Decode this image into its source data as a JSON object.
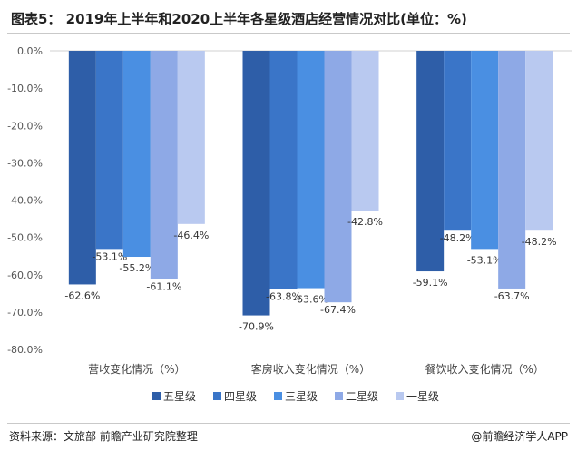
{
  "title": "图表5： 2019年上半年和2020上半年各星级酒店经营情况对比(单位：%)",
  "source": "资料来源：文旅部 前瞻产业研究院整理",
  "brand": "@前瞻经济学人APP",
  "chart_data": {
    "type": "bar",
    "categories": [
      "营收变化情况（%）",
      "客房收入变化情况（%）",
      "餐饮收入变化情况（%）"
    ],
    "series": [
      {
        "name": "五星级",
        "color": "#2e5ea8",
        "values": [
          -62.6,
          -70.9,
          -59.1
        ],
        "labels": [
          "-62.6%",
          "-70.9%",
          "-59.1%"
        ]
      },
      {
        "name": "四星级",
        "color": "#3a75c8",
        "values": [
          -53.1,
          -63.8,
          -48.2
        ],
        "labels": [
          "-53.1%",
          "-63.8%",
          "-48.2%"
        ]
      },
      {
        "name": "三星级",
        "color": "#4a8fe2",
        "values": [
          -55.2,
          -63.6,
          -53.1
        ],
        "labels": [
          "-55.2%",
          "-63.6%",
          "-53.1%"
        ]
      },
      {
        "name": "二星级",
        "color": "#8ea9e6",
        "values": [
          -61.1,
          -67.4,
          -63.7
        ],
        "labels": [
          "-61.1%",
          "-67.4%",
          "-63.7%"
        ]
      },
      {
        "name": "一星级",
        "color": "#b9c9f0",
        "values": [
          -46.4,
          -42.8,
          -48.2
        ],
        "labels": [
          "-46.4%",
          "-42.8%",
          "-48.2%"
        ]
      }
    ],
    "ylim": [
      -80,
      0
    ],
    "yticks": [
      "0.0%",
      "-10.0%",
      "-20.0%",
      "-30.0%",
      "-40.0%",
      "-50.0%",
      "-60.0%",
      "-70.0%",
      "-80.0%"
    ],
    "legend_position": "bottom",
    "grid": false
  }
}
